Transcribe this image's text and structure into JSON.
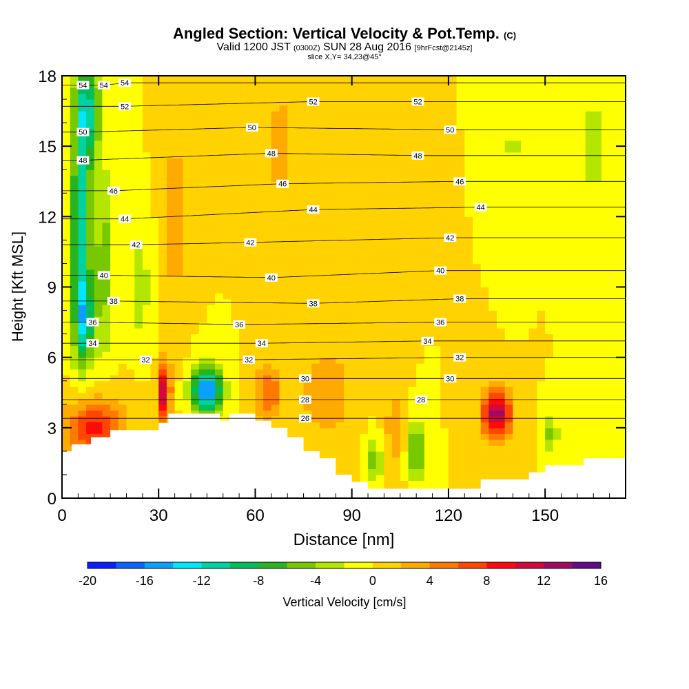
{
  "header": {
    "title": "Angled Section: Vertical Velocity & Pot.Temp.",
    "title_unit": "(C)",
    "valid_prefix": "Valid 1200 JST",
    "valid_utc": "(0300Z)",
    "valid_date": "SUN 28 Aug 2016",
    "forecast": "[9hrFcst@2145z]",
    "slice": "slice X,Y= 34,23@45°"
  },
  "chart_data": {
    "type": "heatmap",
    "title": "Angled Section: Vertical Velocity & Pot.Temp. (C)",
    "xlabel": "Distance [nm]",
    "ylabel": "Height [Kft MSL]",
    "xlim": [
      0,
      175
    ],
    "ylim": [
      0,
      18
    ],
    "xticks": [
      0,
      30,
      60,
      90,
      120,
      150
    ],
    "yticks": [
      0,
      3,
      6,
      9,
      12,
      15,
      18
    ],
    "colorbar": {
      "label": "Vertical Velocity [cm/s]",
      "ticks": [
        -20,
        -16,
        -12,
        -8,
        -4,
        0,
        4,
        8,
        12,
        16
      ],
      "levels": [
        -20,
        -18,
        -16,
        -14,
        -12,
        -10,
        -8,
        -6,
        -4,
        -2,
        0,
        2,
        4,
        6,
        8,
        10,
        12,
        14,
        16
      ],
      "colors": [
        "#0a1eff",
        "#0a64ff",
        "#0aa0ff",
        "#00e6ff",
        "#00d2a0",
        "#00be5a",
        "#28b41e",
        "#78c800",
        "#b4e600",
        "#ffff00",
        "#ffd200",
        "#ffaa00",
        "#ff7800",
        "#ff4600",
        "#ff0a0a",
        "#d20a3c",
        "#a00a64",
        "#640a8c"
      ]
    },
    "background_w": 0,
    "features": [
      {
        "x": 6,
        "y": 11.5,
        "w": -12,
        "sx": 3,
        "sy": 5.0
      },
      {
        "x": 8,
        "y": 16.5,
        "w": -9,
        "sx": 4,
        "sy": 2.0
      },
      {
        "x": 7,
        "y": 7.5,
        "w": -8,
        "sx": 3,
        "sy": 1.6
      },
      {
        "x": 45,
        "y": 4.6,
        "w": -17,
        "sx": 4.5,
        "sy": 0.9
      },
      {
        "x": 32,
        "y": 4.6,
        "w": 15,
        "sx": 1.5,
        "sy": 1.2
      },
      {
        "x": 135,
        "y": 3.6,
        "w": 13,
        "sx": 4.5,
        "sy": 1.1
      },
      {
        "x": 10,
        "y": 3.0,
        "w": 9,
        "sx": 9,
        "sy": 1.3
      },
      {
        "x": 110,
        "y": 2.0,
        "w": -7,
        "sx": 2.5,
        "sy": 1.2
      },
      {
        "x": 97,
        "y": 1.6,
        "w": -5,
        "sx": 2.5,
        "sy": 1.0
      },
      {
        "x": 152,
        "y": 2.8,
        "w": -5,
        "sx": 2,
        "sy": 0.8
      },
      {
        "x": 64,
        "y": 4.5,
        "w": 6,
        "sx": 4,
        "sy": 1.2
      },
      {
        "x": 82,
        "y": 4.5,
        "w": 4,
        "sx": 8,
        "sy": 1.8
      },
      {
        "x": 103,
        "y": 3.0,
        "w": 3,
        "sx": 3,
        "sy": 2.0
      },
      {
        "x": 35,
        "y": 12.0,
        "w": 3,
        "sx": 3,
        "sy": 5.0
      },
      {
        "x": 68,
        "y": 15.0,
        "w": 3,
        "sx": 4,
        "sy": 3.0
      },
      {
        "x": 165,
        "y": 15.0,
        "w": -3,
        "sx": 4,
        "sy": 2.5
      },
      {
        "x": 140,
        "y": 15.0,
        "w": -3,
        "sx": 2,
        "sy": 3.0
      },
      {
        "x": 13,
        "y": 10.0,
        "w": -5,
        "sx": 3,
        "sy": 4.0
      },
      {
        "x": 24,
        "y": 9.0,
        "w": -4,
        "sx": 3,
        "sy": 2.0
      }
    ],
    "terrain": [
      [
        0,
        2.0
      ],
      [
        3,
        2.0
      ],
      [
        3,
        2.3
      ],
      [
        9,
        2.3
      ],
      [
        9,
        2.6
      ],
      [
        15,
        2.6
      ],
      [
        15,
        2.9
      ],
      [
        30,
        2.9
      ],
      [
        30,
        3.2
      ],
      [
        33,
        3.2
      ],
      [
        33,
        3.6
      ],
      [
        49,
        3.6
      ],
      [
        49,
        3.3
      ],
      [
        52,
        3.3
      ],
      [
        52,
        3.6
      ],
      [
        60,
        3.6
      ],
      [
        60,
        3.3
      ],
      [
        65,
        3.3
      ],
      [
        65,
        3.0
      ],
      [
        70,
        3.0
      ],
      [
        70,
        2.6
      ],
      [
        75,
        2.6
      ],
      [
        75,
        2.0
      ],
      [
        80,
        2.0
      ],
      [
        80,
        1.7
      ],
      [
        85,
        1.7
      ],
      [
        85,
        1.0
      ],
      [
        90,
        1.0
      ],
      [
        90,
        0.7
      ],
      [
        95,
        0.7
      ],
      [
        95,
        0.4
      ],
      [
        130,
        0.4
      ],
      [
        130,
        0.8
      ],
      [
        145,
        0.8
      ],
      [
        145,
        1.1
      ],
      [
        150,
        1.1
      ],
      [
        150,
        1.4
      ],
      [
        162,
        1.4
      ],
      [
        162,
        1.7
      ],
      [
        175,
        1.7
      ]
    ],
    "isentropes": {
      "levels": [
        26,
        28,
        30,
        32,
        34,
        36,
        38,
        40,
        42,
        44,
        46,
        48,
        50,
        52,
        54
      ],
      "labels": [
        {
          "x": 75.5,
          "y": 3.4,
          "text": "26"
        },
        {
          "x": 75.5,
          "y": 4.2,
          "text": "28"
        },
        {
          "x": 111.5,
          "y": 4.2,
          "text": "28"
        },
        {
          "x": 75.5,
          "y": 5.1,
          "text": "30"
        },
        {
          "x": 120.5,
          "y": 5.1,
          "text": "30"
        },
        {
          "x": 26,
          "y": 5.9,
          "text": "32"
        },
        {
          "x": 58,
          "y": 5.9,
          "text": "32"
        },
        {
          "x": 123.5,
          "y": 6.0,
          "text": "32"
        },
        {
          "x": 9.5,
          "y": 6.6,
          "text": "34"
        },
        {
          "x": 62,
          "y": 6.6,
          "text": "34"
        },
        {
          "x": 113.5,
          "y": 6.7,
          "text": "34"
        },
        {
          "x": 9.5,
          "y": 7.5,
          "text": "36"
        },
        {
          "x": 55,
          "y": 7.4,
          "text": "36"
        },
        {
          "x": 117.5,
          "y": 7.5,
          "text": "36"
        },
        {
          "x": 16,
          "y": 8.4,
          "text": "38"
        },
        {
          "x": 78,
          "y": 8.3,
          "text": "38"
        },
        {
          "x": 123.5,
          "y": 8.5,
          "text": "38"
        },
        {
          "x": 13,
          "y": 9.5,
          "text": "40"
        },
        {
          "x": 65,
          "y": 9.4,
          "text": "40"
        },
        {
          "x": 117.5,
          "y": 9.7,
          "text": "40"
        },
        {
          "x": 23,
          "y": 10.8,
          "text": "42"
        },
        {
          "x": 58.5,
          "y": 10.9,
          "text": "42"
        },
        {
          "x": 120.5,
          "y": 11.1,
          "text": "42"
        },
        {
          "x": 19.5,
          "y": 11.9,
          "text": "44"
        },
        {
          "x": 78,
          "y": 12.3,
          "text": "44"
        },
        {
          "x": 130,
          "y": 12.4,
          "text": "44"
        },
        {
          "x": 16,
          "y": 13.1,
          "text": "46"
        },
        {
          "x": 68.5,
          "y": 13.4,
          "text": "46"
        },
        {
          "x": 123.5,
          "y": 13.5,
          "text": "46"
        },
        {
          "x": 6.5,
          "y": 14.4,
          "text": "48"
        },
        {
          "x": 65,
          "y": 14.7,
          "text": "48"
        },
        {
          "x": 110.5,
          "y": 14.6,
          "text": "48"
        },
        {
          "x": 6.5,
          "y": 15.6,
          "text": "50"
        },
        {
          "x": 59,
          "y": 15.8,
          "text": "50"
        },
        {
          "x": 120.5,
          "y": 15.7,
          "text": "50"
        },
        {
          "x": 19.5,
          "y": 16.7,
          "text": "52"
        },
        {
          "x": 78,
          "y": 16.9,
          "text": "52"
        },
        {
          "x": 110.5,
          "y": 16.9,
          "text": "52"
        },
        {
          "x": 6.5,
          "y": 17.6,
          "text": "54"
        },
        {
          "x": 13,
          "y": 17.6,
          "text": "54"
        },
        {
          "x": 19.5,
          "y": 17.7,
          "text": "54"
        }
      ]
    }
  }
}
